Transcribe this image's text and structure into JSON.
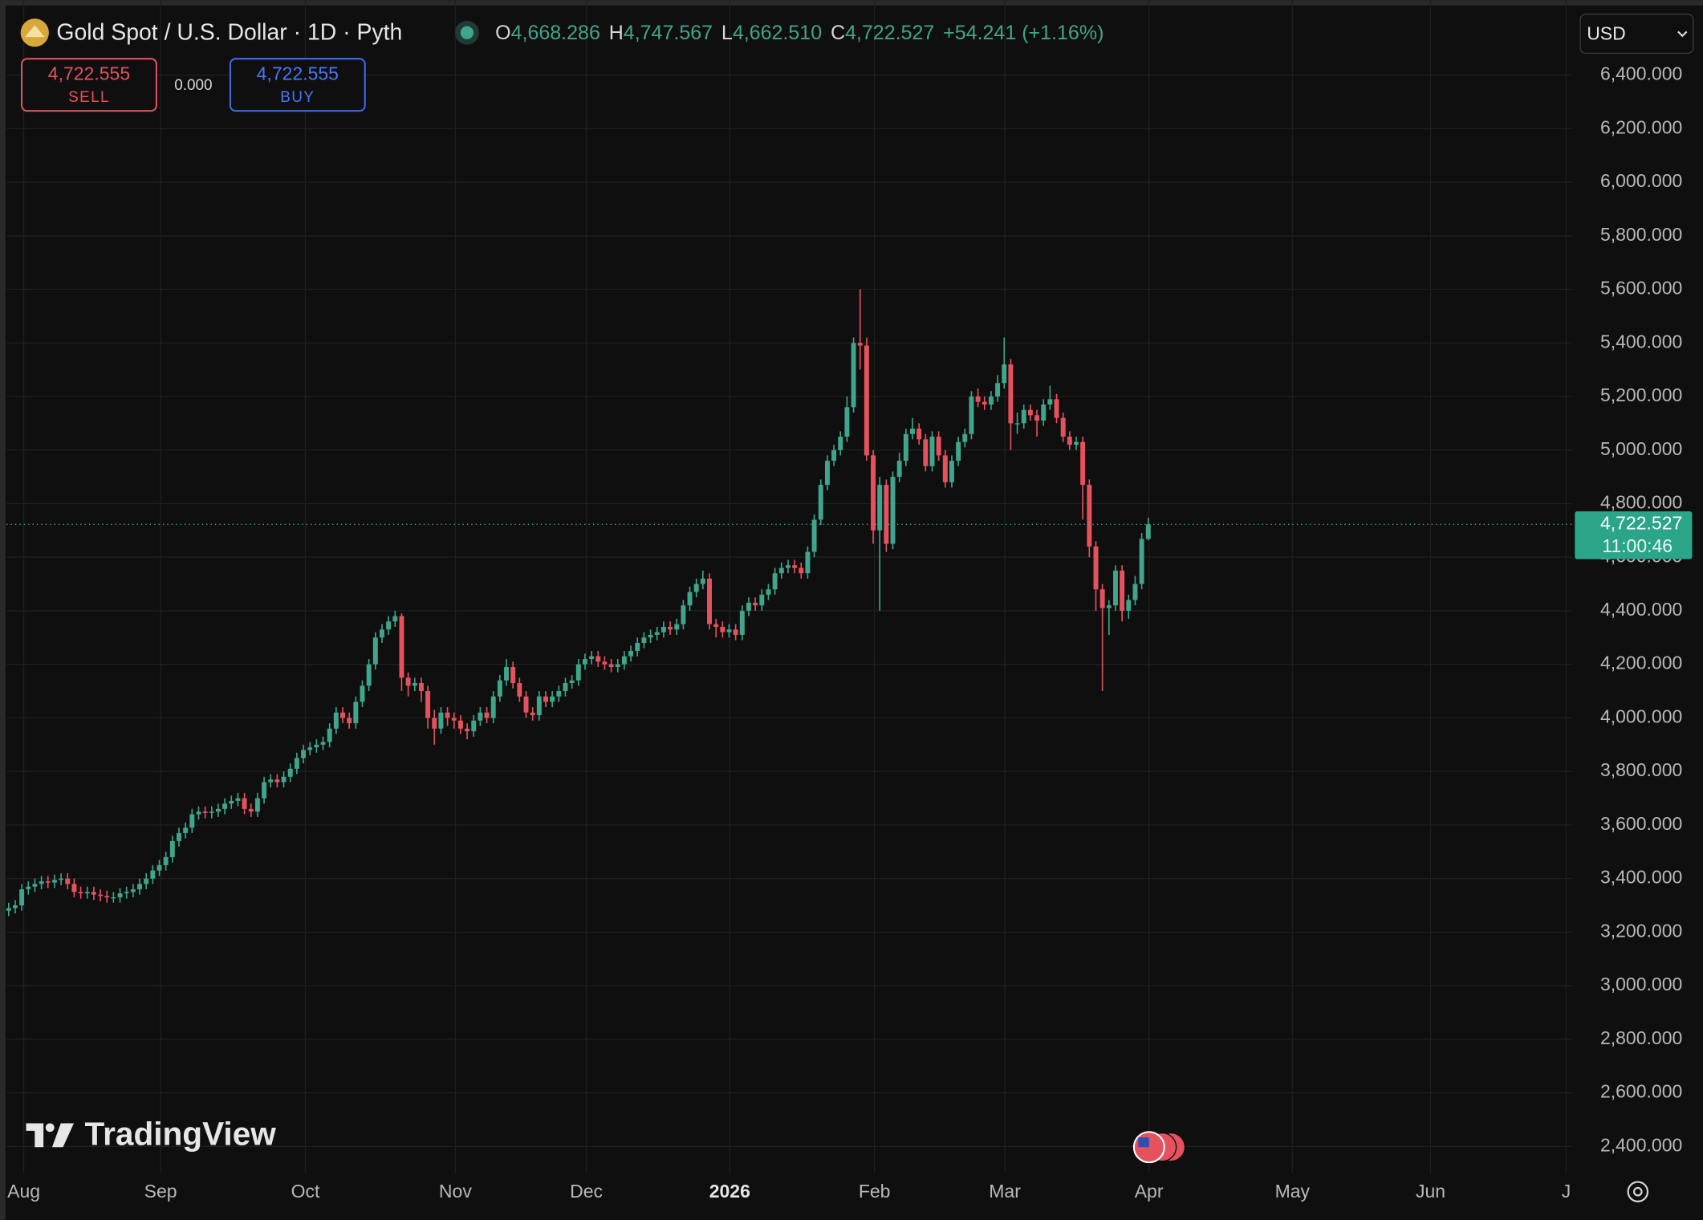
{
  "header": {
    "symbol": "Gold Spot / U.S. Dollar · 1D · Pyth",
    "o": "O",
    "open": "4,668.286",
    "h": "H",
    "high": "4,747.567",
    "l": "L",
    "low": "4,662.510",
    "c": "C",
    "close": "4,722.527",
    "change": "+54.241 (+1.16%)"
  },
  "trade": {
    "sell_price": "4,722.555",
    "sell": "SELL",
    "spread": "0.000",
    "buy_price": "4,722.555",
    "buy": "BUY"
  },
  "currency": "USD",
  "brand": "TradingView",
  "chart_data": {
    "type": "candlestick",
    "up_color": "#3fa58c",
    "down_color": "#e5525e",
    "grid": true,
    "open": [
      3280,
      3290,
      3300,
      3360,
      3370,
      3380,
      3390,
      3385,
      3395,
      3400,
      3380,
      3350,
      3345,
      3350,
      3340,
      3335,
      3330,
      3330,
      3345,
      3350,
      3360,
      3380,
      3400,
      3430,
      3450,
      3480,
      3540,
      3570,
      3590,
      3640,
      3650,
      3645,
      3650,
      3660,
      3680,
      3690,
      3700,
      3660,
      3650,
      3700,
      3760,
      3770,
      3760,
      3780,
      3810,
      3850,
      3880,
      3890,
      3900,
      3910,
      3960,
      4020,
      4000,
      3980,
      4060,
      4120,
      4200,
      4300,
      4330,
      4360,
      4380,
      4150,
      4120,
      4130,
      4100,
      4000,
      3960,
      4020,
      4000,
      3990,
      3960,
      3950,
      3990,
      4020,
      4000,
      4080,
      4140,
      4190,
      4130,
      4080,
      4020,
      4010,
      4080,
      4060,
      4080,
      4100,
      4130,
      4140,
      4200,
      4220,
      4230,
      4210,
      4200,
      4190,
      4200,
      4230,
      4250,
      4280,
      4300,
      4310,
      4320,
      4340,
      4330,
      4350,
      4420,
      4470,
      4500,
      4520,
      4350,
      4340,
      4320,
      4330,
      4310,
      4400,
      4430,
      4420,
      4460,
      4480,
      4540,
      4560,
      4570,
      4560,
      4540,
      4620,
      4740,
      4870,
      4960,
      5000,
      5050,
      5160,
      5400,
      5390,
      4980,
      4700,
      4870,
      4650,
      4900,
      4960,
      5060,
      5080,
      5040,
      4940,
      5050,
      4980,
      4880,
      4960,
      5030,
      5060,
      5200,
      5180,
      5170,
      5200,
      5250,
      5320,
      5100,
      5100,
      5150,
      5130,
      5110,
      5170,
      5190,
      5120,
      5050,
      5020,
      5030,
      4870,
      4640,
      4480,
      4410,
      4420,
      4550,
      4400,
      4440,
      4500,
      4668.286
    ],
    "high": [
      3310,
      3320,
      3380,
      3390,
      3400,
      3410,
      3410,
      3415,
      3420,
      3420,
      3400,
      3370,
      3370,
      3370,
      3360,
      3355,
      3350,
      3365,
      3370,
      3380,
      3400,
      3420,
      3450,
      3470,
      3500,
      3560,
      3590,
      3610,
      3660,
      3670,
      3670,
      3670,
      3680,
      3700,
      3710,
      3720,
      3720,
      3680,
      3720,
      3780,
      3790,
      3790,
      3800,
      3830,
      3870,
      3900,
      3910,
      3920,
      3930,
      3980,
      4040,
      4040,
      4020,
      4080,
      4140,
      4220,
      4320,
      4350,
      4380,
      4400,
      4390,
      4170,
      4150,
      4150,
      4120,
      4030,
      4040,
      4040,
      4020,
      4010,
      3980,
      4010,
      4040,
      4040,
      4100,
      4160,
      4220,
      4210,
      4150,
      4100,
      4040,
      4100,
      4100,
      4100,
      4120,
      4150,
      4160,
      4220,
      4240,
      4250,
      4250,
      4230,
      4220,
      4220,
      4250,
      4270,
      4300,
      4320,
      4330,
      4340,
      4360,
      4360,
      4370,
      4440,
      4490,
      4520,
      4550,
      4540,
      4370,
      4360,
      4350,
      4350,
      4420,
      4450,
      4450,
      4480,
      4500,
      4560,
      4580,
      4590,
      4590,
      4580,
      4640,
      4760,
      4890,
      4980,
      5020,
      5070,
      5200,
      5420,
      5600,
      5420,
      5000,
      4900,
      4890,
      4920,
      4990,
      5080,
      5120,
      5100,
      5060,
      5070,
      5070,
      5000,
      4980,
      5050,
      5080,
      5220,
      5230,
      5200,
      5220,
      5280,
      5420,
      5340,
      5140,
      5170,
      5170,
      5150,
      5190,
      5240,
      5210,
      5140,
      5070,
      5050,
      5050,
      4890,
      4660,
      4500,
      4440,
      4570,
      4570,
      4460,
      4530,
      4690,
      4747.567
    ],
    "low": [
      3260,
      3270,
      3280,
      3340,
      3350,
      3360,
      3365,
      3365,
      3375,
      3360,
      3330,
      3325,
      3325,
      3320,
      3315,
      3310,
      3310,
      3310,
      3325,
      3330,
      3340,
      3360,
      3380,
      3410,
      3430,
      3460,
      3520,
      3550,
      3570,
      3620,
      3625,
      3625,
      3630,
      3640,
      3660,
      3670,
      3640,
      3630,
      3630,
      3680,
      3740,
      3740,
      3740,
      3760,
      3790,
      3830,
      3860,
      3870,
      3880,
      3890,
      3940,
      3980,
      3960,
      3960,
      4040,
      4100,
      4180,
      4280,
      4310,
      4340,
      4100,
      4080,
      4100,
      4060,
      3960,
      3900,
      3940,
      3970,
      3960,
      3940,
      3920,
      3930,
      3970,
      3980,
      3980,
      4060,
      4120,
      4110,
      4060,
      4000,
      3990,
      3990,
      4040,
      4040,
      4060,
      4080,
      4110,
      4120,
      4180,
      4200,
      4190,
      4180,
      4170,
      4170,
      4180,
      4210,
      4230,
      4260,
      4280,
      4290,
      4300,
      4310,
      4310,
      4330,
      4400,
      4450,
      4480,
      4330,
      4300,
      4300,
      4300,
      4290,
      4290,
      4380,
      4400,
      4400,
      4440,
      4460,
      4520,
      4540,
      4540,
      4520,
      4520,
      4600,
      4720,
      4850,
      4940,
      4980,
      5030,
      5140,
      5300,
      4960,
      4650,
      4400,
      4620,
      4630,
      4880,
      4940,
      5040,
      5020,
      4920,
      4920,
      4960,
      4860,
      4860,
      4940,
      5010,
      5040,
      5160,
      5150,
      5150,
      5180,
      5230,
      5000,
      5060,
      5080,
      5110,
      5050,
      5090,
      5150,
      5100,
      5030,
      5000,
      5000,
      4740,
      4600,
      4400,
      4100,
      4310,
      4400,
      4360,
      4370,
      4420,
      4480,
      4662.51
    ],
    "close": [
      3290,
      3300,
      3360,
      3370,
      3380,
      3390,
      3385,
      3395,
      3400,
      3380,
      3350,
      3345,
      3350,
      3340,
      3335,
      3330,
      3330,
      3345,
      3350,
      3360,
      3380,
      3400,
      3430,
      3450,
      3480,
      3540,
      3570,
      3590,
      3640,
      3650,
      3645,
      3650,
      3660,
      3680,
      3690,
      3700,
      3660,
      3650,
      3700,
      3760,
      3770,
      3760,
      3780,
      3810,
      3850,
      3880,
      3890,
      3900,
      3910,
      3960,
      4020,
      4000,
      3980,
      4060,
      4120,
      4200,
      4300,
      4330,
      4360,
      4380,
      4150,
      4120,
      4130,
      4100,
      4000,
      3960,
      4020,
      4000,
      3990,
      3960,
      3950,
      3990,
      4020,
      4000,
      4080,
      4140,
      4190,
      4130,
      4080,
      4020,
      4010,
      4080,
      4060,
      4080,
      4100,
      4130,
      4140,
      4200,
      4220,
      4230,
      4210,
      4200,
      4190,
      4200,
      4230,
      4250,
      4280,
      4300,
      4310,
      4320,
      4340,
      4330,
      4350,
      4420,
      4470,
      4500,
      4520,
      4350,
      4340,
      4320,
      4330,
      4310,
      4400,
      4430,
      4420,
      4460,
      4480,
      4540,
      4560,
      4570,
      4560,
      4540,
      4620,
      4740,
      4870,
      4960,
      5000,
      5050,
      5160,
      5400,
      5390,
      4980,
      4700,
      4870,
      4650,
      4900,
      4960,
      5060,
      5080,
      5040,
      4940,
      5050,
      4980,
      4880,
      4960,
      5030,
      5060,
      5200,
      5180,
      5170,
      5200,
      5250,
      5320,
      5100,
      5100,
      5150,
      5130,
      5110,
      5170,
      5190,
      5120,
      5050,
      5020,
      5030,
      4870,
      4640,
      4480,
      4410,
      4420,
      4550,
      4400,
      4440,
      4500,
      4668.286,
      4722.527
    ],
    "xlim": [
      -0.33,
      238.8
    ],
    "xticks": [
      {
        "value": 2.3,
        "label": "Aug"
      },
      {
        "value": 23.2,
        "label": "Sep"
      },
      {
        "value": 45.3,
        "label": "Oct"
      },
      {
        "value": 68.2,
        "label": "Nov"
      },
      {
        "value": 88.2,
        "label": "Dec"
      },
      {
        "value": 110.1,
        "label": "2026"
      },
      {
        "value": 132.2,
        "label": "Feb"
      },
      {
        "value": 152.1,
        "label": "Mar"
      },
      {
        "value": 174.1,
        "label": "Apr"
      },
      {
        "value": 196,
        "label": "May"
      },
      {
        "value": 217.1,
        "label": "Jun"
      },
      {
        "value": 237.8,
        "label": "J"
      }
    ],
    "ylim": [
      2300,
      6680
    ],
    "yticks": [
      {
        "value": 2400,
        "label": "2,400.000"
      },
      {
        "value": 2600,
        "label": "2,600.000"
      },
      {
        "value": 2800,
        "label": "2,800.000"
      },
      {
        "value": 3000,
        "label": "3,000.000"
      },
      {
        "value": 3200,
        "label": "3,200.000"
      },
      {
        "value": 3400,
        "label": "3,400.000"
      },
      {
        "value": 3600,
        "label": "3,600.000"
      },
      {
        "value": 3800,
        "label": "3,800.000"
      },
      {
        "value": 4000,
        "label": "4,000.000"
      },
      {
        "value": 4200,
        "label": "4,200.000"
      },
      {
        "value": 4400,
        "label": "4,400.000"
      },
      {
        "value": 4600,
        "label": "4,600.000"
      },
      {
        "value": 4800,
        "label": "4,800.000"
      },
      {
        "value": 5000,
        "label": "5,000.000"
      },
      {
        "value": 5200,
        "label": "5,200.000"
      },
      {
        "value": 5400,
        "label": "5,400.000"
      },
      {
        "value": 5600,
        "label": "5,600.000"
      },
      {
        "value": 5800,
        "label": "5,800.000"
      },
      {
        "value": 6000,
        "label": "6,000.000"
      },
      {
        "value": 6200,
        "label": "6,200.000"
      },
      {
        "value": 6400,
        "label": "6,400.000"
      }
    ],
    "last_price": {
      "value": 4722.527,
      "label": "4,722.527",
      "countdown": "11:00:46"
    }
  }
}
